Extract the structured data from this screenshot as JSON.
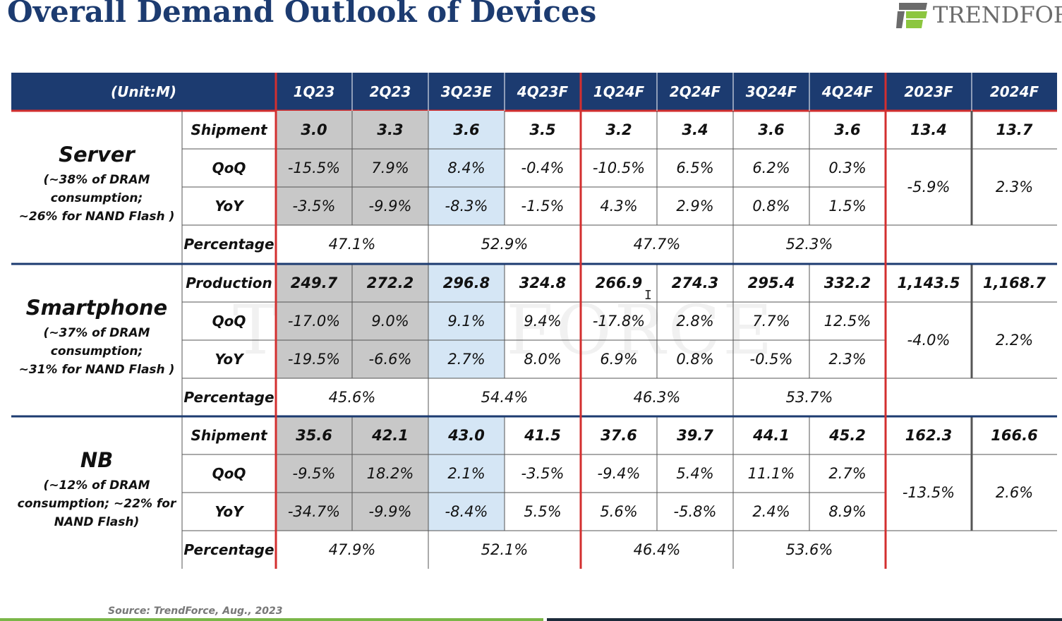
{
  "title": "Overall Demand Outlook of Devices",
  "logo": {
    "text": "TRENDFORCE",
    "mark_colors": [
      "#8cc63f",
      "#6b6b6b"
    ]
  },
  "colors": {
    "header_bg": "#1c3b70",
    "header_text": "#ffffff",
    "red_divider": "#d32f2f",
    "actual_shade": "#c8c8c8",
    "estimate_shade": "#d5e6f5",
    "group_divider": "#1c3b70"
  },
  "table": {
    "unit_label": "(Unit:M)",
    "columns": [
      "1Q23",
      "2Q23",
      "3Q23E",
      "4Q23F",
      "1Q24F",
      "2Q24F",
      "3Q24F",
      "4Q24F",
      "2023F",
      "2024F"
    ],
    "groups": [
      {
        "name": "Server",
        "subtitle": [
          "(~38% of DRAM",
          "consumption;",
          "~26% for NAND Flash )"
        ],
        "rows": [
          {
            "label": "Shipment",
            "values": [
              "3.0",
              "3.3",
              "3.6",
              "3.5",
              "3.2",
              "3.4",
              "3.6",
              "3.6"
            ],
            "annual": [
              "13.4",
              "13.7"
            ]
          },
          {
            "label": "QoQ",
            "values": [
              "-15.5%",
              "7.9%",
              "8.4%",
              "-0.4%",
              "-10.5%",
              "6.5%",
              "6.2%",
              "0.3%"
            ]
          },
          {
            "label": "YoY",
            "values": [
              "-3.5%",
              "-9.9%",
              "-8.3%",
              "-1.5%",
              "4.3%",
              "2.9%",
              "0.8%",
              "1.5%"
            ]
          },
          {
            "label": "Percentage",
            "halves": [
              "47.1%",
              "52.9%",
              "47.7%",
              "52.3%"
            ]
          }
        ],
        "annual_growth": [
          "-5.9%",
          "2.3%"
        ]
      },
      {
        "name": "Smartphone",
        "subtitle": [
          "(~37% of DRAM",
          "consumption;",
          "~31% for NAND Flash )"
        ],
        "rows": [
          {
            "label": "Production",
            "values": [
              "249.7",
              "272.2",
              "296.8",
              "324.8",
              "266.9",
              "274.3",
              "295.4",
              "332.2"
            ],
            "annual": [
              "1,143.5",
              "1,168.7"
            ]
          },
          {
            "label": "QoQ",
            "values": [
              "-17.0%",
              "9.0%",
              "9.1%",
              "9.4%",
              "-17.8%",
              "2.8%",
              "7.7%",
              "12.5%"
            ]
          },
          {
            "label": "YoY",
            "values": [
              "-19.5%",
              "-6.6%",
              "2.7%",
              "8.0%",
              "6.9%",
              "0.8%",
              "-0.5%",
              "2.3%"
            ]
          },
          {
            "label": "Percentage",
            "halves": [
              "45.6%",
              "54.4%",
              "46.3%",
              "53.7%"
            ]
          }
        ],
        "annual_growth": [
          "-4.0%",
          "2.2%"
        ]
      },
      {
        "name": "NB",
        "subtitle": [
          "(~12% of DRAM",
          "consumption; ~22% for",
          "NAND Flash)"
        ],
        "rows": [
          {
            "label": "Shipment",
            "values": [
              "35.6",
              "42.1",
              "43.0",
              "41.5",
              "37.6",
              "39.7",
              "44.1",
              "45.2"
            ],
            "annual": [
              "162.3",
              "166.6"
            ]
          },
          {
            "label": "QoQ",
            "values": [
              "-9.5%",
              "18.2%",
              "2.1%",
              "-3.5%",
              "-9.4%",
              "5.4%",
              "11.1%",
              "2.7%"
            ]
          },
          {
            "label": "YoY",
            "values": [
              "-34.7%",
              "-9.9%",
              "-8.4%",
              "5.5%",
              "5.6%",
              "-5.8%",
              "2.4%",
              "8.9%"
            ]
          },
          {
            "label": "Percentage",
            "halves": [
              "47.9%",
              "52.1%",
              "46.4%",
              "53.6%"
            ]
          }
        ],
        "annual_growth": [
          "-13.5%",
          "2.6%"
        ]
      }
    ]
  },
  "watermark": "TRENDFORCE",
  "source": "Source: TrendForce, Aug., 2023"
}
